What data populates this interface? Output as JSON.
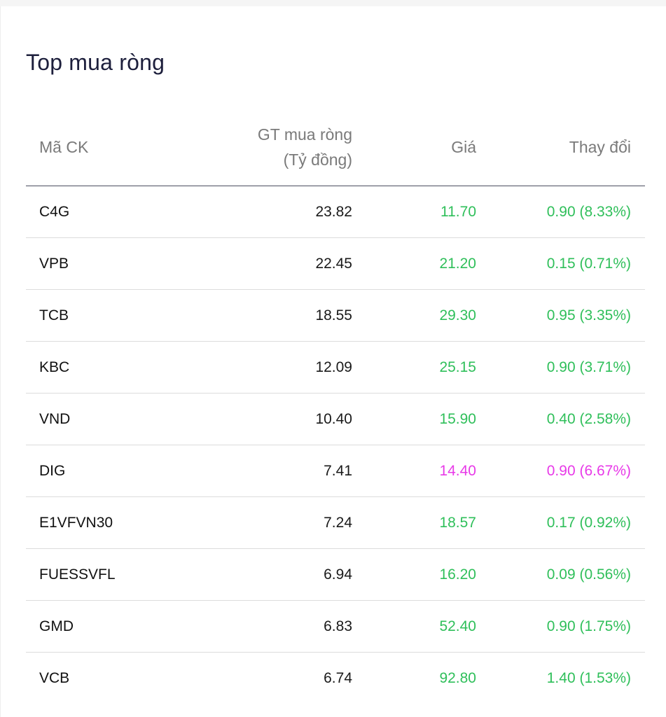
{
  "title": "Top mua ròng",
  "colors": {
    "up": "#2fbf5a",
    "ceiling": "#e83ae8",
    "text": "#111111",
    "header": "#7a7a7a"
  },
  "headers": {
    "code": "Mã CK",
    "value_line1": "GT mua ròng",
    "value_line2": "(Tỷ đồng)",
    "price": "Giá",
    "change": "Thay đổi"
  },
  "rows": [
    {
      "code": "C4G",
      "value": "23.82",
      "price": "11.70",
      "change": "0.90 (8.33%)",
      "status": "up"
    },
    {
      "code": "VPB",
      "value": "22.45",
      "price": "21.20",
      "change": "0.15 (0.71%)",
      "status": "up"
    },
    {
      "code": "TCB",
      "value": "18.55",
      "price": "29.30",
      "change": "0.95 (3.35%)",
      "status": "up"
    },
    {
      "code": "KBC",
      "value": "12.09",
      "price": "25.15",
      "change": "0.90 (3.71%)",
      "status": "up"
    },
    {
      "code": "VND",
      "value": "10.40",
      "price": "15.90",
      "change": "0.40 (2.58%)",
      "status": "up"
    },
    {
      "code": "DIG",
      "value": "7.41",
      "price": "14.40",
      "change": "0.90 (6.67%)",
      "status": "ceiling"
    },
    {
      "code": "E1VFVN30",
      "value": "7.24",
      "price": "18.57",
      "change": "0.17 (0.92%)",
      "status": "up"
    },
    {
      "code": "FUESSVFL",
      "value": "6.94",
      "price": "16.20",
      "change": "0.09 (0.56%)",
      "status": "up"
    },
    {
      "code": "GMD",
      "value": "6.83",
      "price": "52.40",
      "change": "0.90 (1.75%)",
      "status": "up"
    },
    {
      "code": "VCB",
      "value": "6.74",
      "price": "92.80",
      "change": "1.40 (1.53%)",
      "status": "up"
    }
  ]
}
